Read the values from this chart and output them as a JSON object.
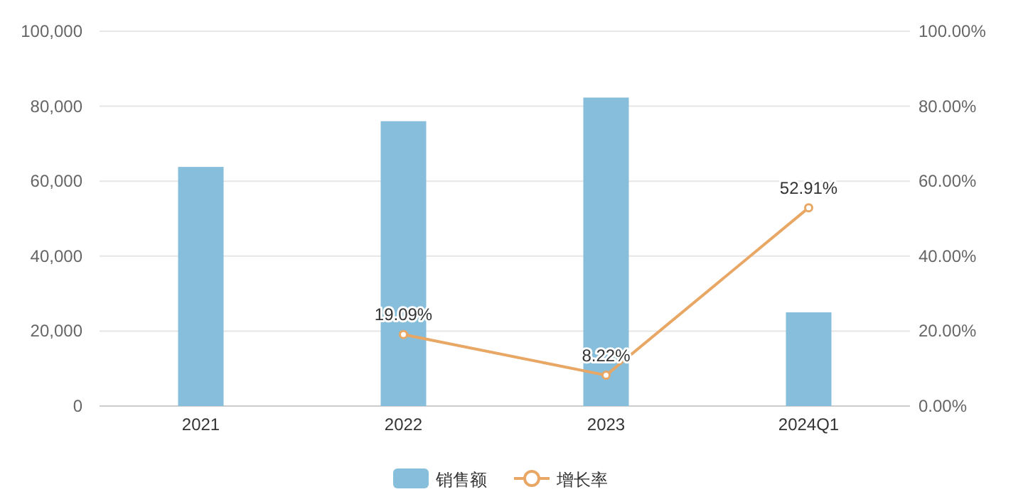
{
  "chart_data": {
    "type": "bar",
    "categories": [
      "2021",
      "2022",
      "2023",
      "2024Q1"
    ],
    "series": [
      {
        "name": "销售额",
        "color": "#86bedb",
        "values": [
          63800,
          76000,
          82300,
          25000
        ]
      },
      {
        "name": "增长率",
        "type": "line",
        "axis": "y2",
        "color": "#e8a765",
        "marker": "circle",
        "values": [
          null,
          19.09,
          8.22,
          52.91
        ],
        "value_labels": [
          null,
          "19.09%",
          "8.22%",
          "52.91%"
        ]
      }
    ],
    "ylim": [
      0,
      100000
    ],
    "yticks": [
      0,
      {
        "value": 20000,
        "label": "20,000"
      },
      {
        "value": 40000,
        "label": "40,000"
      },
      {
        "value": 60000,
        "label": "60,000"
      },
      {
        "value": 80000,
        "label": "80,000"
      },
      {
        "value": 100000,
        "label": "100,000"
      }
    ],
    "y2lim": [
      0,
      100
    ],
    "y2ticks": [
      {
        "value": 0,
        "label": "0.00%"
      },
      {
        "value": 20,
        "label": "20.00%"
      },
      {
        "value": 40,
        "label": "40.00%"
      },
      {
        "value": 60,
        "label": "60.00%"
      },
      {
        "value": 80,
        "label": "80.00%"
      },
      {
        "value": 100,
        "label": "100.00%"
      }
    ],
    "grid": "y",
    "legend": "bottom"
  }
}
